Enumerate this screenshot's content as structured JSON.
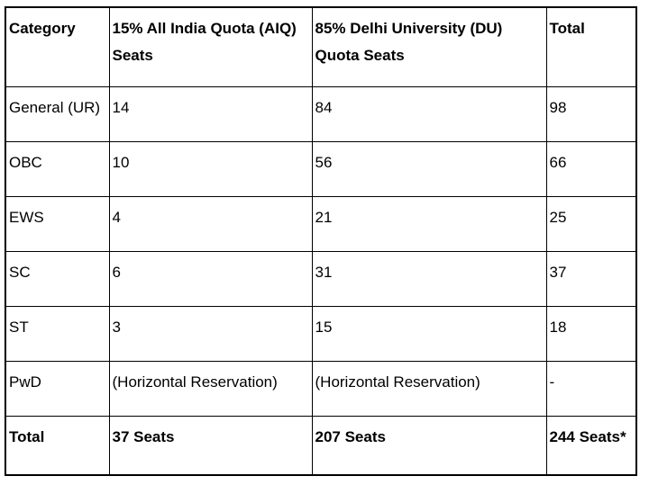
{
  "table": {
    "columns": [
      "Category",
      "15% All India Quota (AIQ) Seats",
      "85% Delhi University (DU) Quota Seats",
      "Total"
    ],
    "rows": [
      [
        "General (UR)",
        "14",
        "84",
        "98"
      ],
      [
        "OBC",
        "10",
        "56",
        "66"
      ],
      [
        "EWS",
        "4",
        "21",
        "25"
      ],
      [
        "SC",
        "6",
        "31",
        "37"
      ],
      [
        "ST",
        "3",
        "15",
        "18"
      ],
      [
        "PwD",
        "(Horizontal Reservation)",
        "(Horizontal Reservation)",
        "-"
      ]
    ],
    "footer_row": [
      "Total",
      "37 Seats",
      "207 Seats",
      "244 Seats*"
    ],
    "colors": {
      "border": "#000000",
      "background": "#ffffff",
      "text": "#000000"
    }
  }
}
